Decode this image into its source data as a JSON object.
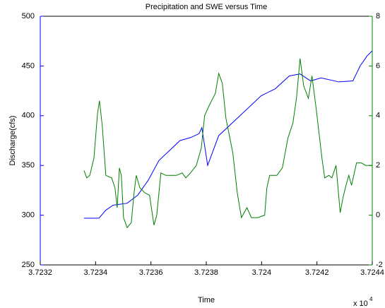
{
  "chart_data": {
    "type": "line",
    "title": "Precipitation and SWE versus Time",
    "xlabel": "Time",
    "ylabel": "Discharge(cfs)",
    "x_multiplier": "x 10",
    "x_exponent": "4",
    "xlim": [
      3.7232,
      3.7244
    ],
    "xticks": [
      3.7232,
      3.7234,
      3.7236,
      3.7238,
      3.724,
      3.7242,
      3.7244
    ],
    "ylim": [
      250,
      500
    ],
    "yticks": [
      250,
      300,
      350,
      400,
      450,
      500
    ],
    "y2lim": [
      -2,
      8
    ],
    "y2ticks": [
      -2,
      0,
      2,
      4,
      6,
      8
    ],
    "ycolor": "#0000ff",
    "y2color": "#008000",
    "series": [
      {
        "color": "#0000ff",
        "x": [
          3.723358,
          3.723412,
          3.723437,
          3.723463,
          3.723514,
          3.723552,
          3.72359,
          3.723629,
          3.723667,
          3.723705,
          3.723743,
          3.723774,
          3.723784,
          3.723805,
          3.723845,
          3.723922,
          3.723998,
          3.724049,
          3.7241,
          3.724139,
          3.724177,
          3.724215,
          3.724279,
          3.72433,
          3.724356,
          3.724381,
          3.724399
        ],
        "values": [
          297,
          297,
          305,
          310,
          312,
          320,
          335,
          355,
          365,
          375,
          378,
          382,
          388,
          350,
          380,
          400,
          420,
          427,
          440,
          442,
          435,
          438,
          434,
          435,
          450,
          460,
          465
        ]
      },
      {
        "color": "#008000",
        "axis": "y2",
        "x": [
          3.723358,
          3.723368,
          3.723379,
          3.723394,
          3.723407,
          3.723414,
          3.723424,
          3.723437,
          3.723458,
          3.72347,
          3.723478,
          3.723486,
          3.723493,
          3.723501,
          3.723514,
          3.723529,
          3.723539,
          3.723547,
          3.72356,
          3.723578,
          3.723595,
          3.723611,
          3.723621,
          3.723636,
          3.723654,
          3.723692,
          3.723713,
          3.723726,
          3.723743,
          3.723764,
          3.723782,
          3.723794,
          3.72381,
          3.723833,
          3.723845,
          3.723858,
          3.723871,
          3.723896,
          3.723912,
          3.723927,
          3.723947,
          3.723963,
          3.723986,
          3.724011,
          3.724019,
          3.724029,
          3.724055,
          3.724075,
          3.724095,
          3.724113,
          3.724126,
          3.724139,
          3.724152,
          3.724169,
          3.724182,
          3.724197,
          3.724218,
          3.724228,
          3.724243,
          3.724254,
          3.724269,
          3.724284,
          3.724294,
          3.724305,
          3.724315,
          3.724325,
          3.724343,
          3.724361,
          3.724376,
          3.724399
        ],
        "values": [
          1.8,
          1.5,
          1.6,
          2.3,
          4.1,
          4.6,
          3.6,
          1.6,
          1.5,
          1.1,
          0.3,
          1.9,
          1.6,
          -0.1,
          -0.5,
          -0.3,
          0.9,
          1.6,
          1.1,
          0.9,
          0.8,
          -0.4,
          0,
          1.7,
          1.6,
          1.6,
          1.7,
          1.5,
          1.7,
          2.0,
          2.7,
          4.0,
          4.4,
          4.9,
          5.7,
          5.3,
          3.9,
          2.5,
          0.9,
          -0.1,
          0.3,
          -0.1,
          -0.1,
          0,
          1.1,
          1.6,
          1.6,
          1.9,
          3.1,
          3.7,
          4.7,
          6.3,
          5.2,
          4.7,
          5.6,
          4.3,
          2.3,
          1.5,
          1.6,
          1.5,
          2.0,
          0.1,
          0.7,
          1.2,
          1.6,
          1.2,
          2.1,
          2.1,
          2.0,
          2.0
        ]
      }
    ]
  }
}
